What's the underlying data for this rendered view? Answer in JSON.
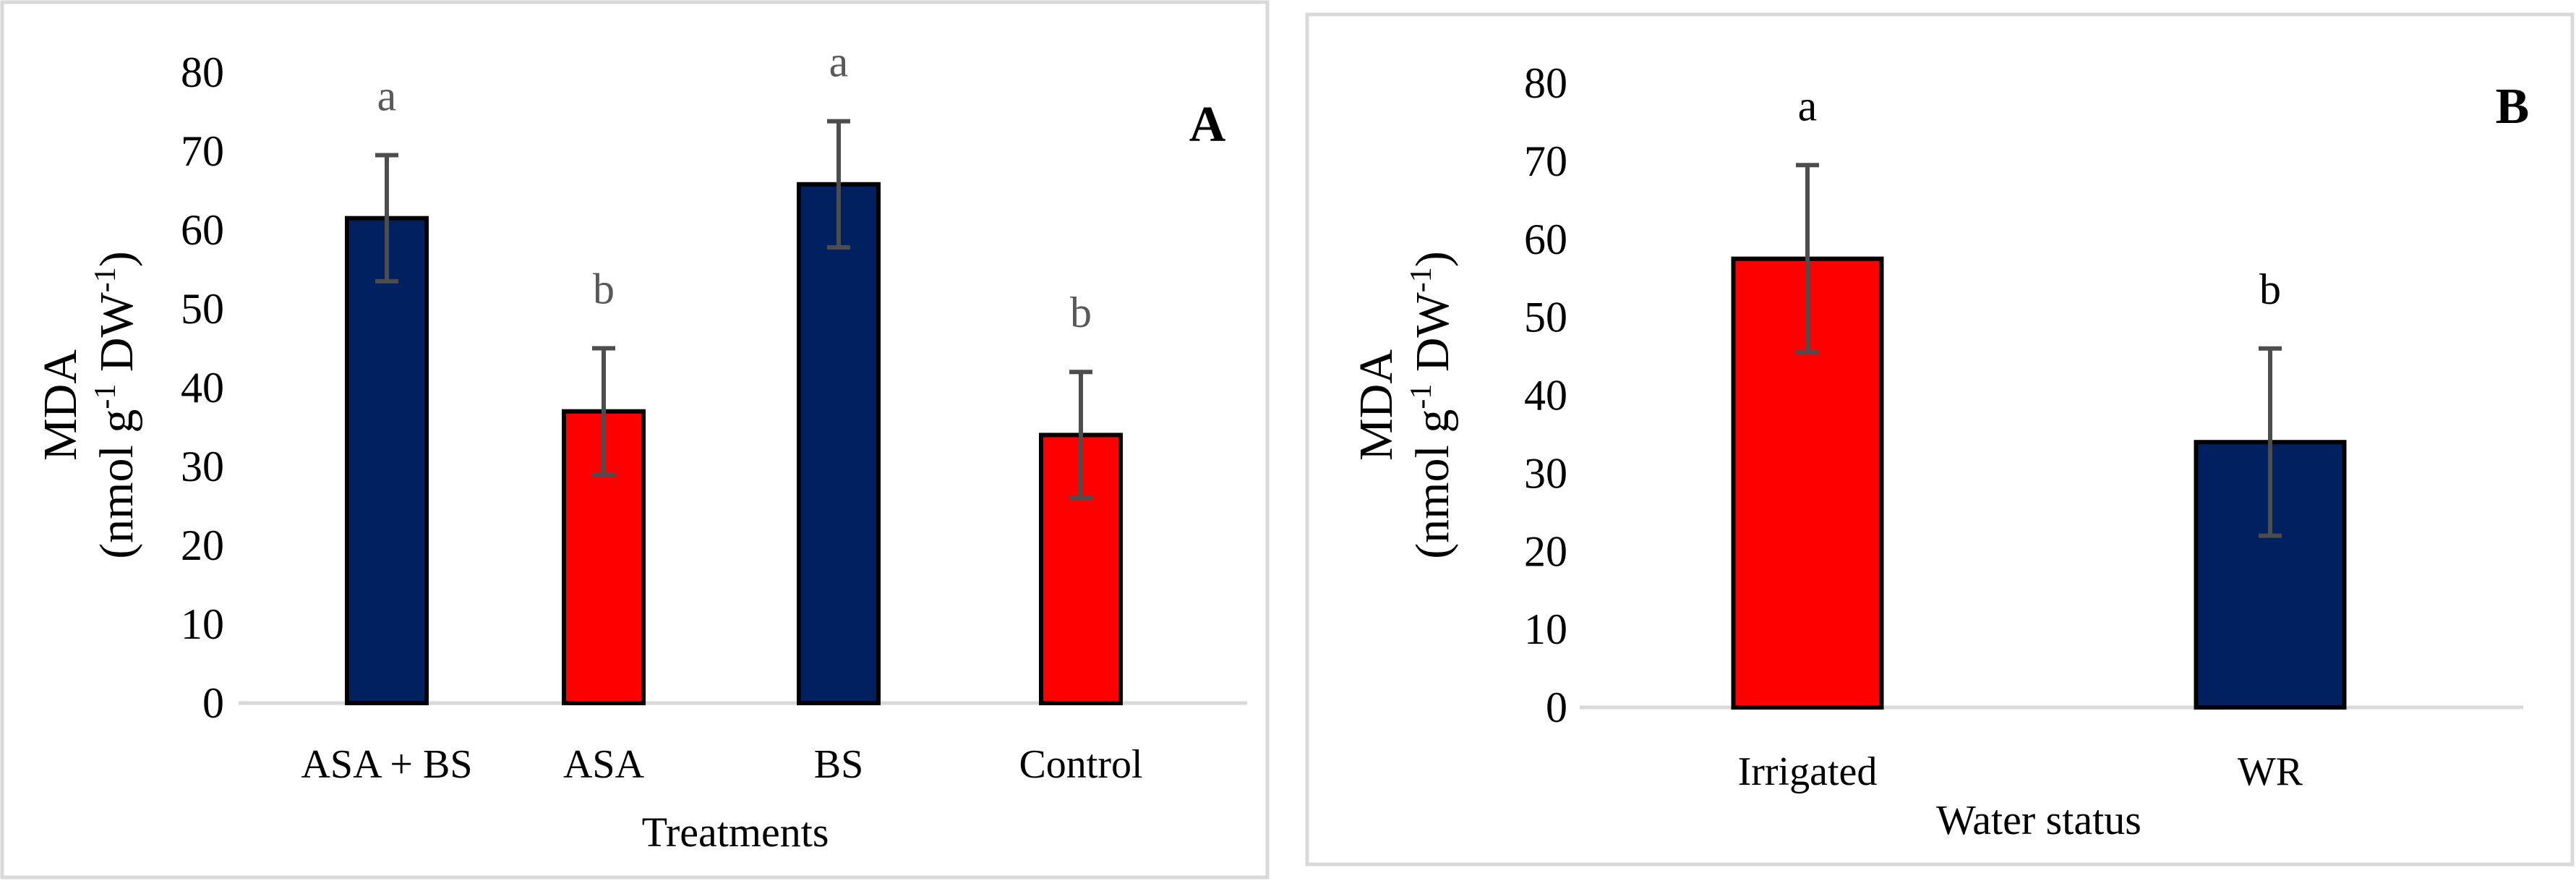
{
  "chart_data": [
    {
      "type": "bar",
      "panel_label": "A",
      "title": "",
      "xlabel": "Treatments",
      "ylabel_line1": "MDA",
      "ylabel_line2_parts": {
        "a": "(nmol g",
        "b": "-1",
        "c": " DW",
        "d": "-1",
        "e": ")"
      },
      "ylim": [
        0,
        80
      ],
      "yticks": [
        0,
        10,
        20,
        30,
        40,
        50,
        60,
        70,
        80
      ],
      "grid": false,
      "letter_color": "#595959",
      "categories": [
        "ASA + BS",
        "ASA",
        "BS",
        "Control"
      ],
      "values": [
        61.5,
        37,
        65.8,
        34
      ],
      "errors": [
        8,
        8,
        8,
        8
      ],
      "letters": [
        "a",
        "b",
        "a",
        "b"
      ],
      "colors": [
        "#002060",
        "#ff0000",
        "#002060",
        "#ff0000"
      ]
    },
    {
      "type": "bar",
      "panel_label": "B",
      "title": "",
      "xlabel": "Water status",
      "ylabel_line1": "MDA",
      "ylabel_line2_parts": {
        "a": "(nmol g",
        "b": "-1",
        "c": " DW",
        "d": "-1",
        "e": ")"
      },
      "ylim": [
        0,
        80
      ],
      "yticks": [
        0,
        10,
        20,
        30,
        40,
        50,
        60,
        70,
        80
      ],
      "grid": false,
      "letter_color": "#000000",
      "categories": [
        "Irrigated",
        "WR"
      ],
      "values": [
        57.5,
        34
      ],
      "errors": [
        12,
        12
      ],
      "letters": [
        "a",
        "b"
      ],
      "colors": [
        "#ff0000",
        "#002060"
      ]
    }
  ]
}
